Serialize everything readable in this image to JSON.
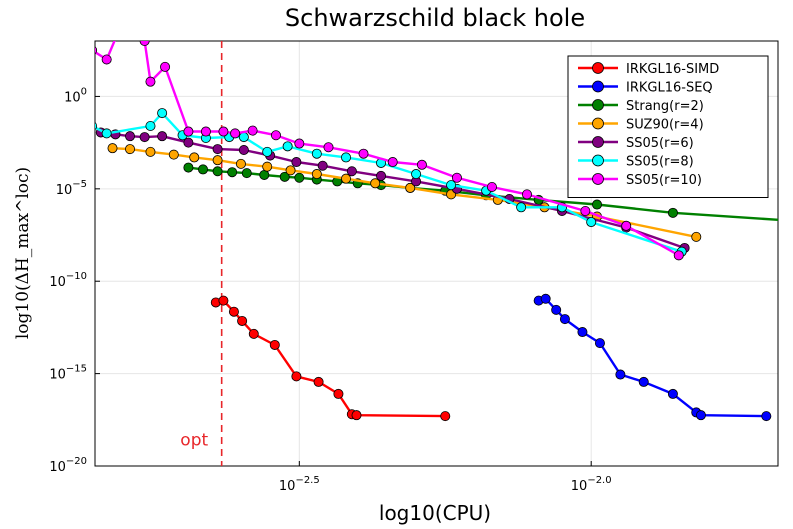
{
  "chart_data": {
    "type": "line",
    "title": "Schwarzschild black hole",
    "xlabel": "log10(CPU)",
    "ylabel": "log10(ΔH_max^loc)",
    "xscale": "log",
    "yscale": "log",
    "xlim_log10": [
      -2.85,
      -1.68
    ],
    "ylim_log10": [
      -20,
      3
    ],
    "xticks": [
      {
        "exp": -2.5,
        "label": "10",
        "sup": "−2.5"
      },
      {
        "exp": -2.0,
        "label": "10",
        "sup": "−2.0"
      }
    ],
    "yticks": [
      {
        "exp": 0,
        "label": "10",
        "sup": "0"
      },
      {
        "exp": -5,
        "label": "10",
        "sup": "−5"
      },
      {
        "exp": -10,
        "label": "10",
        "sup": "−10"
      },
      {
        "exp": -15,
        "label": "10",
        "sup": "−15"
      },
      {
        "exp": -20,
        "label": "10",
        "sup": "−20"
      }
    ],
    "grid": true,
    "legend_position": "top-right",
    "vline": {
      "x_log10": -2.633,
      "color": "#e8262a",
      "style": "dashed"
    },
    "annotation": {
      "text": "opt",
      "x_log10": -2.68,
      "y_log10": -18.9,
      "color": "#e8262a"
    },
    "series": [
      {
        "name": "IRKGL16-SIMD",
        "color": "#ff0000",
        "x_log10": [
          -2.643,
          -2.63,
          -2.612,
          -2.598,
          -2.578,
          -2.542,
          -2.505,
          -2.467,
          -2.433,
          -2.41,
          -2.402,
          -2.25
        ],
        "y_log10": [
          -11.15,
          -11.05,
          -11.65,
          -12.15,
          -12.85,
          -13.45,
          -15.15,
          -15.45,
          -16.1,
          -17.2,
          -17.25,
          -17.3
        ]
      },
      {
        "name": "IRKGL16-SEQ",
        "color": "#0000ff",
        "x_log10": [
          -2.09,
          -2.078,
          -2.06,
          -2.045,
          -2.015,
          -1.985,
          -1.95,
          -1.91,
          -1.86,
          -1.82,
          -1.812,
          -1.7
        ],
        "y_log10": [
          -11.05,
          -10.95,
          -11.55,
          -12.05,
          -12.75,
          -13.35,
          -15.05,
          -15.45,
          -16.1,
          -17.1,
          -17.25,
          -17.3
        ]
      },
      {
        "name": "Strang(r=2)",
        "color": "#008000",
        "x_log10": [
          -2.69,
          -2.665,
          -2.64,
          -2.615,
          -2.59,
          -2.56,
          -2.525,
          -2.5,
          -2.47,
          -2.435,
          -2.4,
          -2.36,
          -2.31,
          -2.25,
          -2.18,
          -2.09,
          -1.99,
          -1.86,
          -1.67
        ],
        "y_log10": [
          -3.85,
          -3.95,
          -4.05,
          -4.1,
          -4.15,
          -4.25,
          -4.35,
          -4.4,
          -4.5,
          -4.6,
          -4.7,
          -4.8,
          -4.95,
          -5.1,
          -5.35,
          -5.6,
          -5.85,
          -6.3,
          -6.7
        ]
      },
      {
        "name": "SUZ90(r=4)",
        "color": "#ffa500",
        "x_log10": [
          -2.82,
          -2.79,
          -2.755,
          -2.715,
          -2.68,
          -2.64,
          -2.6,
          -2.555,
          -2.515,
          -2.47,
          -2.42,
          -2.37,
          -2.31,
          -2.24,
          -2.16,
          -2.08,
          -1.99,
          -1.82
        ],
        "y_log10": [
          -2.8,
          -2.85,
          -3.0,
          -3.15,
          -3.3,
          -3.45,
          -3.65,
          -3.8,
          -4.0,
          -4.2,
          -4.45,
          -4.7,
          -4.95,
          -5.3,
          -5.6,
          -6.0,
          -6.5,
          -7.6
        ]
      },
      {
        "name": "SS05(r=6)",
        "color": "#800080",
        "x_log10": [
          -2.84,
          -2.815,
          -2.79,
          -2.765,
          -2.735,
          -2.69,
          -2.64,
          -2.595,
          -2.55,
          -2.505,
          -2.46,
          -2.41,
          -2.36,
          -2.3,
          -2.23,
          -2.14,
          -2.05,
          -1.94,
          -1.84
        ],
        "y_log10": [
          -1.95,
          -2.05,
          -2.15,
          -2.2,
          -2.15,
          -2.5,
          -2.85,
          -2.9,
          -3.2,
          -3.55,
          -3.75,
          -4.05,
          -4.3,
          -4.6,
          -5.0,
          -5.55,
          -6.2,
          -7.1,
          -8.2
        ]
      },
      {
        "name": "SS05(r=8)",
        "color": "#00ffff",
        "x_log10": [
          -2.855,
          -2.83,
          -2.755,
          -2.735,
          -2.7,
          -2.66,
          -2.62,
          -2.595,
          -2.555,
          -2.52,
          -2.47,
          -2.42,
          -2.36,
          -2.3,
          -2.24,
          -2.18,
          -2.12,
          -2.05,
          -2.0,
          -1.845
        ],
        "y_log10": [
          -1.6,
          -2.0,
          -1.6,
          -0.9,
          -2.1,
          -2.25,
          -2.2,
          -2.2,
          -3.0,
          -2.7,
          -3.1,
          -3.3,
          -3.6,
          -4.2,
          -4.8,
          -5.1,
          -6.0,
          -6.0,
          -6.8,
          -8.4
        ]
      },
      {
        "name": "SS05(r=10)",
        "color": "#ff00ff",
        "x_log10": [
          -2.855,
          -2.83,
          -2.79,
          -2.765,
          -2.755,
          -2.73,
          -2.69,
          -2.66,
          -2.63,
          -2.61,
          -2.58,
          -2.54,
          -2.5,
          -2.45,
          -2.39,
          -2.34,
          -2.29,
          -2.23,
          -2.17,
          -2.11,
          -2.01,
          -1.94,
          -1.85
        ],
        "y_log10": [
          2.5,
          2.0,
          5.0,
          3.0,
          0.8,
          1.6,
          -1.9,
          -1.9,
          -1.9,
          -2.0,
          -1.85,
          -2.1,
          -2.55,
          -2.75,
          -3.1,
          -3.55,
          -3.7,
          -4.4,
          -4.9,
          -5.3,
          -6.2,
          -7.0,
          -8.6
        ]
      }
    ]
  }
}
